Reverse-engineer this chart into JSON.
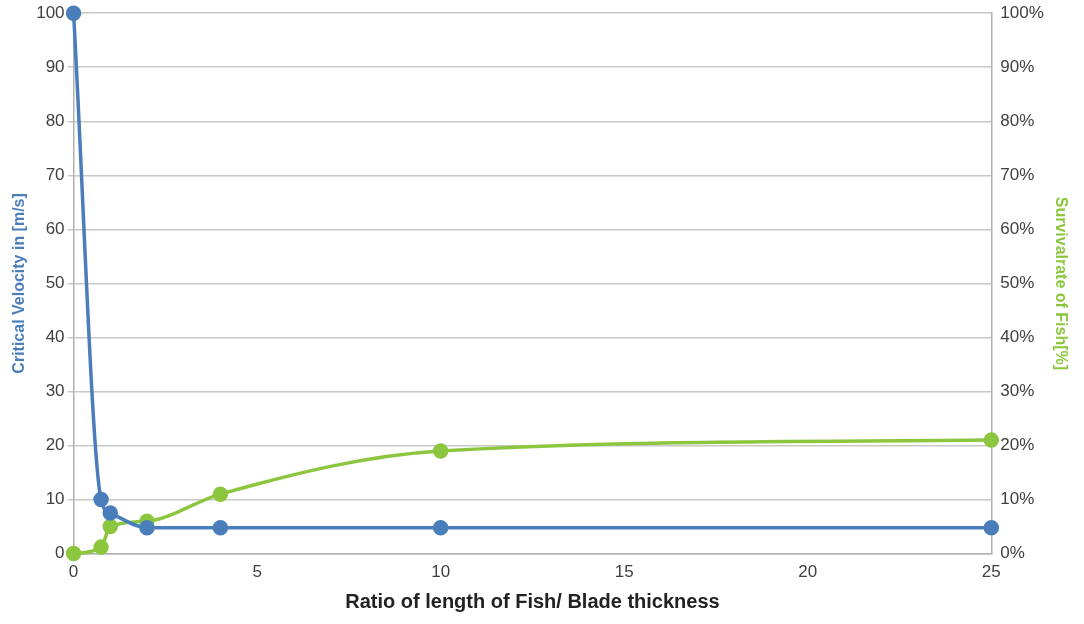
{
  "chart_data": {
    "type": "line",
    "xlabel": "Ratio of length of Fish/ Blade thickness",
    "ylabel": "Critical Velocity in [m/s]",
    "y2label": "Survivalrate of Fish[%]",
    "xlim": [
      0,
      25
    ],
    "xticks": [
      0,
      5,
      10,
      15,
      20,
      25
    ],
    "ylim": [
      0,
      100
    ],
    "yticks": [
      0,
      10,
      20,
      30,
      40,
      50,
      60,
      70,
      80,
      90,
      100
    ],
    "y2lim": [
      0,
      100
    ],
    "y2ticks": [
      {
        "value": 0,
        "label": "0%"
      },
      {
        "value": 10,
        "label": "10%"
      },
      {
        "value": 20,
        "label": "20%"
      },
      {
        "value": 30,
        "label": "30%"
      },
      {
        "value": 40,
        "label": "40%"
      },
      {
        "value": 50,
        "label": "50%"
      },
      {
        "value": 60,
        "label": "60%"
      },
      {
        "value": 70,
        "label": "70%"
      },
      {
        "value": 80,
        "label": "80%"
      },
      {
        "value": 90,
        "label": "90%"
      },
      {
        "value": 100,
        "label": "100%"
      }
    ],
    "series": [
      {
        "color": "#4a7ebb",
        "x": [
          0,
          0.75,
          1,
          2,
          4,
          10,
          25
        ],
        "values": [
          100,
          10,
          7.5,
          4.8,
          4.8,
          4.8,
          4.8
        ]
      },
      {
        "color": "#8cc63f",
        "axis": "y2",
        "x": [
          0,
          0.75,
          1,
          2,
          4,
          10,
          25
        ],
        "values": [
          0,
          1.2,
          5,
          6,
          11,
          19,
          21
        ]
      }
    ],
    "grid": "y",
    "marker": "circle",
    "line_style": "solid",
    "legend": false
  }
}
